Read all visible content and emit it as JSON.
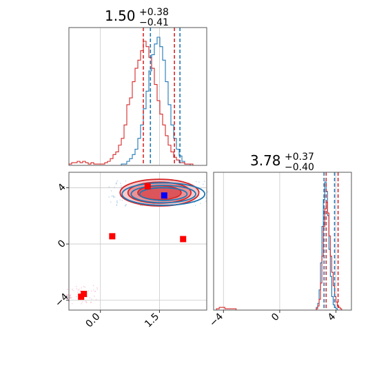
{
  "chart_data": [
    {
      "type": "histogram",
      "panel": "marginal-param-1",
      "title": {
        "median": "1.50",
        "plus": "+0.38",
        "minus": "−0.41"
      },
      "xlim": [
        -0.8,
        2.7
      ],
      "grid": true,
      "quantile_lines": [
        {
          "series": "red",
          "x": [
            1.09,
            1.88
          ],
          "style": "dashed"
        },
        {
          "series": "blue",
          "x": [
            1.27,
            2.02
          ],
          "style": "dashed"
        }
      ],
      "series": [
        {
          "color": "#1f77b4",
          "edges_start": -0.8,
          "bin_width": 0.07,
          "counts": [
            0,
            0,
            0,
            0,
            0,
            0,
            0,
            0,
            0,
            0,
            0,
            0,
            0,
            0,
            0,
            0,
            0,
            0,
            0,
            0.01,
            0.01,
            0.03,
            0.05,
            0.08,
            0.12,
            0.2,
            0.3,
            0.42,
            0.55,
            0.7,
            0.82,
            0.9,
            0.95,
            0.88,
            0.78,
            0.62,
            0.45,
            0.3,
            0.2,
            0.12,
            0.07,
            0.03,
            0.01,
            0.01,
            0,
            0,
            0,
            0,
            0,
            0
          ]
        },
        {
          "color": "#d62728",
          "edges_start": -0.8,
          "bin_width": 0.07,
          "counts": [
            0.01,
            0.02,
            0.02,
            0.03,
            0.02,
            0.03,
            0.02,
            0.01,
            0.02,
            0.01,
            0.01,
            0.01,
            0.01,
            0.02,
            0.03,
            0.05,
            0.08,
            0.1,
            0.15,
            0.2,
            0.3,
            0.45,
            0.5,
            0.62,
            0.72,
            0.78,
            0.85,
            0.92,
            0.88,
            0.8,
            0.72,
            0.6,
            0.48,
            0.38,
            0.3,
            0.22,
            0.15,
            0.1,
            0.06,
            0.04,
            0.02,
            0.02,
            0.01,
            0.01,
            0.01,
            0,
            0,
            0,
            0,
            0
          ]
        }
      ]
    },
    {
      "type": "scatter",
      "panel": "joint-param-1-vs-param-2",
      "xlim": [
        -0.8,
        2.7
      ],
      "ylim": [
        -4.7,
        5.1
      ],
      "x_ticks": [
        "0.0",
        "1.5"
      ],
      "x_tick_values": [
        0.0,
        1.5
      ],
      "y_ticks": [
        "−4",
        "0",
        "4"
      ],
      "y_tick_values": [
        -4,
        0,
        4
      ],
      "grid": true,
      "contours": [
        {
          "series": "red",
          "cx": 1.5,
          "cy": 3.65,
          "rx": [
            1.0,
            0.8,
            0.55
          ],
          "ry": [
            0.95,
            0.75,
            0.5
          ],
          "filled": true
        },
        {
          "series": "blue",
          "cx": 1.6,
          "cy": 3.55,
          "rx": [
            1.05,
            0.82,
            0.6
          ],
          "ry": [
            0.8,
            0.62,
            0.45
          ],
          "filled": false
        }
      ],
      "markers": [
        {
          "color": "#ff0000",
          "x": 1.2,
          "y": 4.1
        },
        {
          "color": "#ff0000",
          "x": 0.3,
          "y": 0.55
        },
        {
          "color": "#ff0000",
          "x": 2.1,
          "y": 0.35
        },
        {
          "color": "#ff0000",
          "x": -0.42,
          "y": -3.55
        },
        {
          "color": "#ff0000",
          "x": -0.49,
          "y": -3.75
        },
        {
          "color": "#0000ff",
          "x": 1.62,
          "y": 3.45
        }
      ]
    },
    {
      "type": "histogram",
      "panel": "marginal-param-2",
      "title": {
        "median": "3.78",
        "plus": "+0.37",
        "minus": "−0.40"
      },
      "xlim": [
        -4.7,
        5.1
      ],
      "x_ticks": [
        "−4",
        "0",
        "4"
      ],
      "x_tick_values": [
        -4,
        0,
        4
      ],
      "grid": true,
      "quantile_lines": [
        {
          "series": "red",
          "x": [
            3.3,
            4.15
          ],
          "style": "dashed"
        },
        {
          "series": "blue",
          "x": [
            3.15,
            3.9
          ],
          "style": "dashed"
        }
      ],
      "series": [
        {
          "color": "#1f77b4",
          "edges_start": 2.5,
          "bin_width": 0.1,
          "counts": [
            0,
            0.02,
            0.05,
            0.15,
            0.35,
            0.62,
            0.82,
            0.95,
            0.88,
            0.7,
            0.45,
            0.25,
            0.1,
            0.04,
            0.02,
            0.01,
            0,
            0,
            0,
            0
          ]
        },
        {
          "color": "#d62728",
          "edges_start": 2.5,
          "bin_width": 0.1,
          "counts": [
            0,
            0.01,
            0.03,
            0.08,
            0.2,
            0.4,
            0.62,
            0.75,
            0.8,
            0.72,
            0.55,
            0.4,
            0.28,
            0.18,
            0.1,
            0.06,
            0.03,
            0.02,
            0.01,
            0
          ]
        },
        {
          "color": "#d62728",
          "edges_start": -4.5,
          "bin_width": 0.2,
          "counts": [
            0.01,
            0.02,
            0.02,
            0.01,
            0.01,
            0.01,
            0.01
          ]
        }
      ]
    }
  ]
}
